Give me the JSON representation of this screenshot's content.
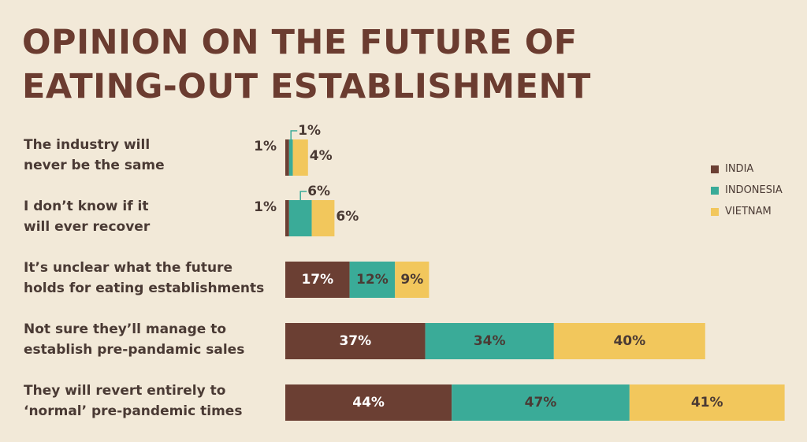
{
  "header": {
    "title_line1": "OPINION ON THE FUTURE OF",
    "title_line2": "EATING-OUT ESTABLISHMENT"
  },
  "colors": {
    "background": "#f2e9d8",
    "india": "#6b3f33",
    "indonesia": "#3aab98",
    "vietnam": "#f2c75c",
    "leader": "#3aab98"
  },
  "chart_data": {
    "type": "bar",
    "orientation": "horizontal",
    "stacked": true,
    "categories": [
      {
        "line1": "The industry will",
        "line2": "never be the same"
      },
      {
        "line1": "I don’t know if it",
        "line2": "will ever recover"
      },
      {
        "line1": "It’s unclear what the future",
        "line2": "holds for eating establishments"
      },
      {
        "line1": "Not sure they’ll manage to",
        "line2": "establish pre-pandamic sales"
      },
      {
        "line1": "They will revert entirely to",
        "line2": "‘normal’ pre-pandemic times"
      }
    ],
    "series": [
      {
        "name": "INDIA",
        "values": [
          1,
          1,
          17,
          37,
          44
        ],
        "labels": [
          "1%",
          "1%",
          "17%",
          "37%",
          "44%"
        ]
      },
      {
        "name": "INDONESIA",
        "values": [
          1,
          6,
          12,
          34,
          47
        ],
        "labels": [
          "1%",
          "6%",
          "12%",
          "34%",
          "47%"
        ]
      },
      {
        "name": "VIETNAM",
        "values": [
          4,
          6,
          9,
          40,
          41
        ],
        "labels": [
          "4%",
          "6%",
          "9%",
          "40%",
          "41%"
        ]
      }
    ],
    "legend_position": "right",
    "grid": false
  }
}
